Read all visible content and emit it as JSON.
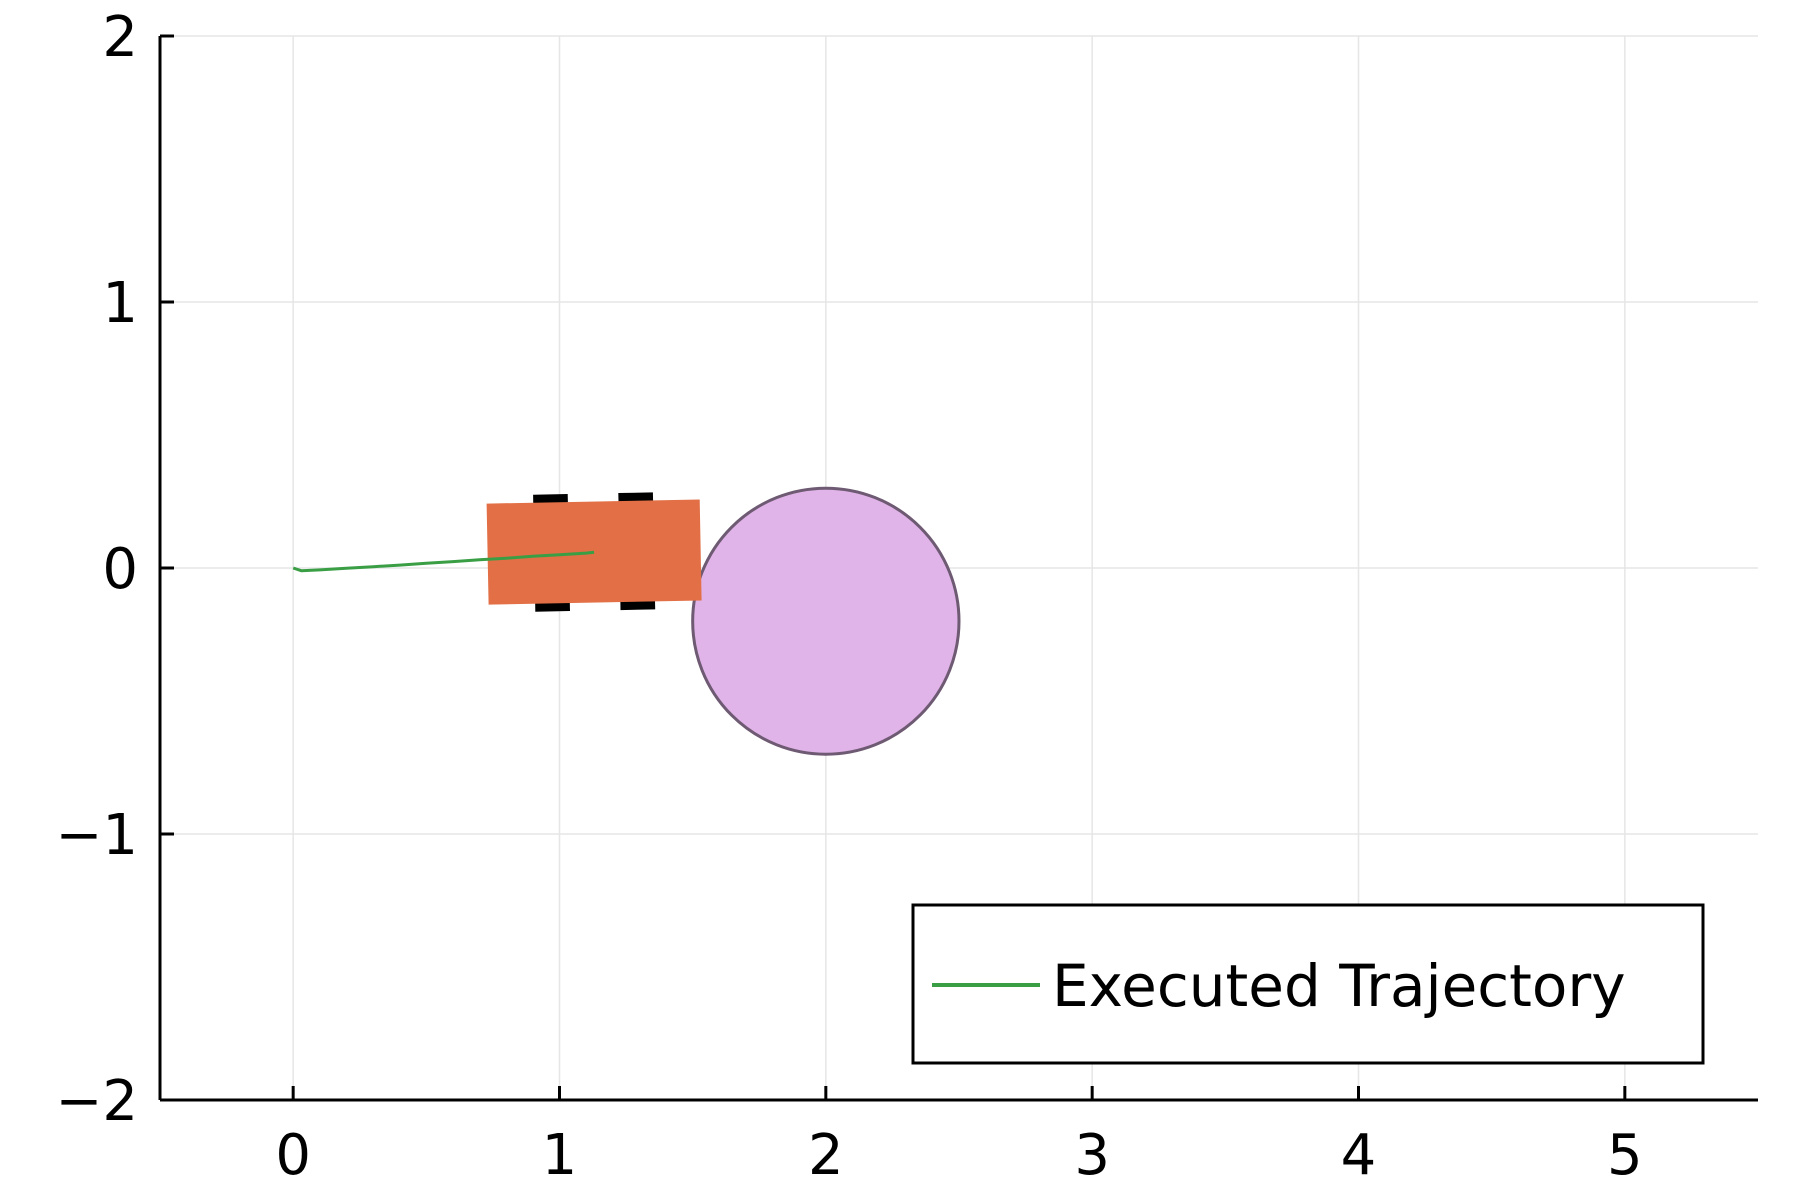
{
  "chart_data": {
    "type": "line",
    "title": "",
    "xlabel": "",
    "ylabel": "",
    "xlim": [
      -0.5,
      5.5
    ],
    "ylim": [
      -2,
      2
    ],
    "xticks": [
      0,
      1,
      2,
      3,
      4,
      5
    ],
    "xtick_labels": [
      "0",
      "1",
      "2",
      "3",
      "4",
      "5"
    ],
    "yticks": [
      -2,
      -1,
      0,
      1,
      2
    ],
    "ytick_labels": [
      "−2",
      "−1",
      "0",
      "1",
      "2"
    ],
    "grid": true,
    "legend": {
      "position": "bottom-right",
      "entries": [
        "Executed Trajectory"
      ]
    },
    "series": [
      {
        "name": "Executed Trajectory",
        "color": "#3a9e45",
        "x": [
          0.0,
          0.03,
          0.1,
          0.2,
          0.3,
          0.4,
          0.5,
          0.6,
          0.7,
          0.8,
          0.9,
          1.0,
          1.1,
          1.13
        ],
        "y": [
          0.0,
          -0.01,
          -0.007,
          -0.001,
          0.005,
          0.011,
          0.018,
          0.024,
          0.031,
          0.037,
          0.044,
          0.05,
          0.056,
          0.059
        ]
      }
    ],
    "obstacle": {
      "shape": "circle",
      "center": [
        2.0,
        -0.2
      ],
      "radius": 0.5,
      "fill": "#e0b4e8",
      "stroke": "#6e5a72"
    },
    "vehicle": {
      "center": [
        1.13,
        0.06
      ],
      "length": 0.8,
      "width": 0.38,
      "heading_deg": 1.1,
      "body_color": "#e26f45",
      "wheel_color": "#000000"
    }
  }
}
